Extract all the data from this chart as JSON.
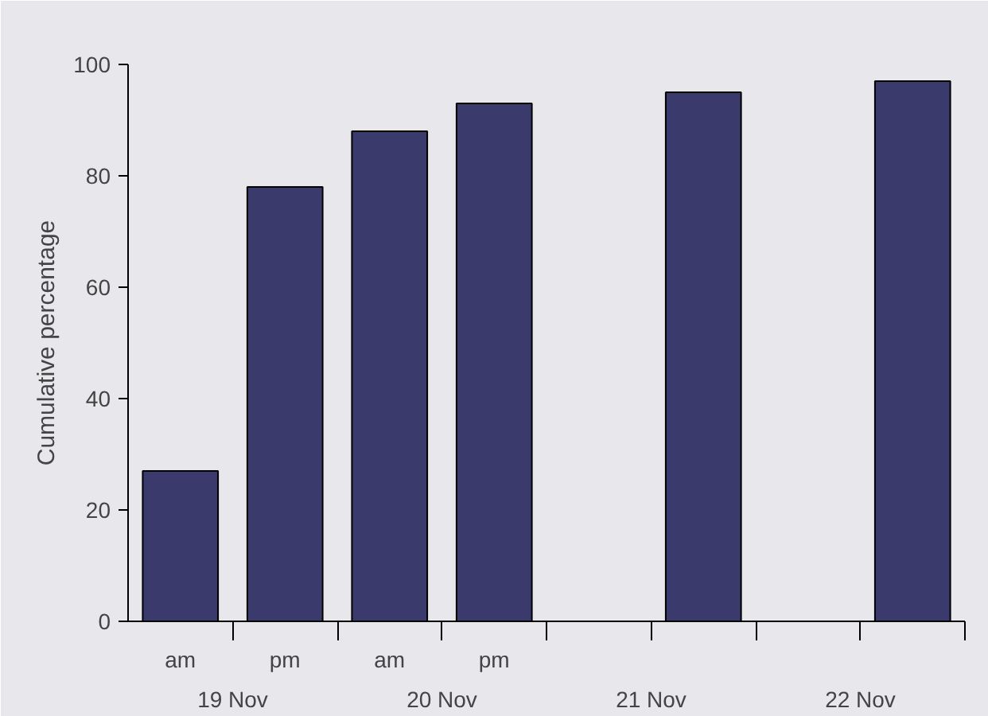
{
  "chart_data": {
    "type": "bar",
    "ylabel": "Cumulative percentage",
    "categories": [
      "am",
      "pm",
      "am",
      "pm",
      null,
      null,
      null,
      null
    ],
    "values": [
      27,
      78,
      88,
      93,
      null,
      95,
      null,
      97
    ],
    "color": "#3b3a6d",
    "ylim": [
      0,
      100
    ],
    "yticks": [
      0,
      20,
      40,
      60,
      80,
      100
    ],
    "grid": false,
    "annotations": [
      "19 Nov",
      "20 Nov",
      "21 Nov",
      "22 Nov"
    ]
  }
}
